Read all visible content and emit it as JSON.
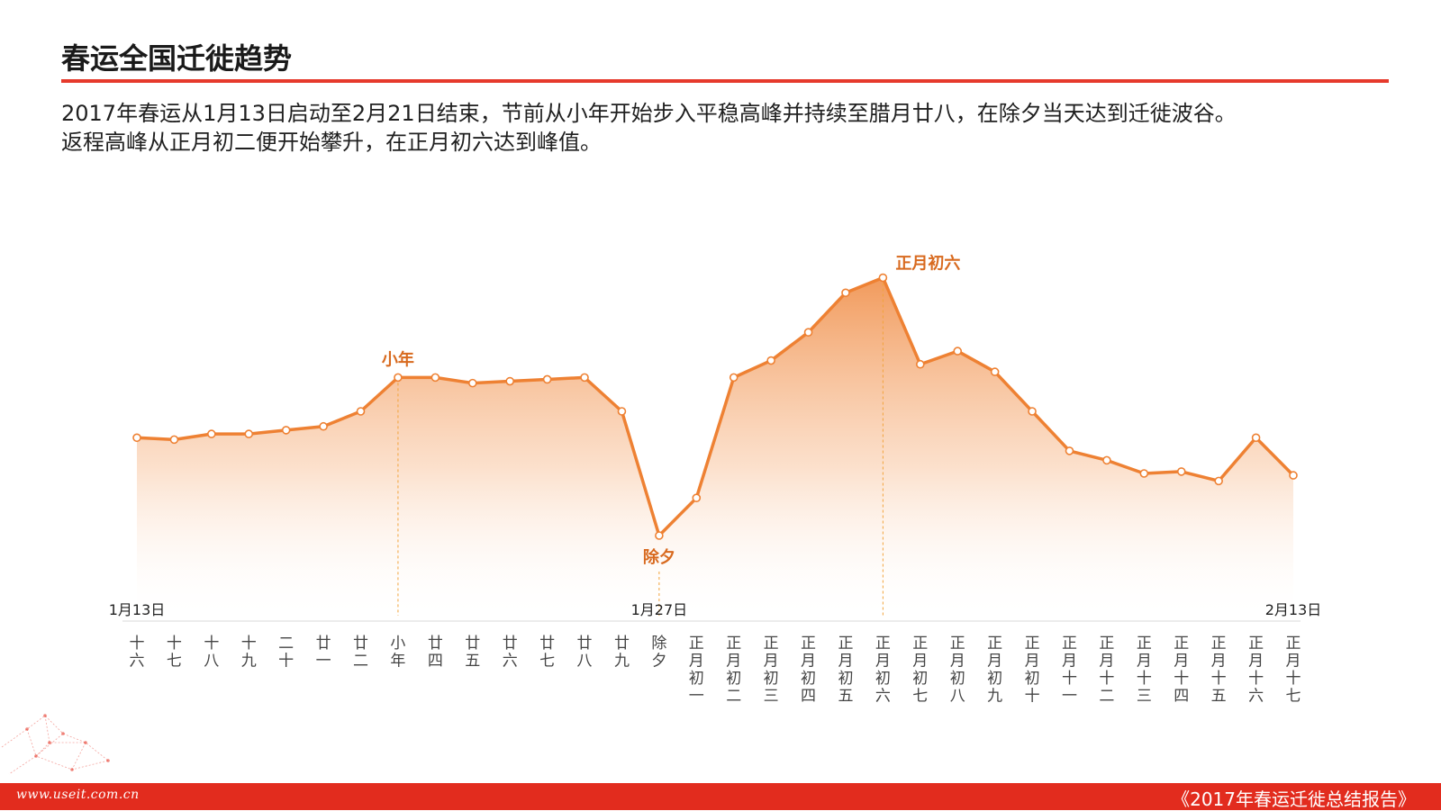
{
  "header": {
    "title": "春运全国迁徙趋势",
    "description_line1": "2017年春运从1月13日启动至2月21日结束，节前从小年开始步入平稳高峰并持续至腊月廿八，在除夕当天达到迁徙波谷。",
    "description_line2": "返程高峰从正月初二便开始攀升，在正月初六达到峰值。"
  },
  "footer": {
    "url": "www.useit.com.cn",
    "report_title": "《2017年春运迁徙总结报告》"
  },
  "colors": {
    "accent": "#e63a2c",
    "line": "#ee8133",
    "annotation": "#d86a1f",
    "footer": "#e22c1e"
  },
  "chart_data": {
    "type": "area",
    "categories": [
      "十六",
      "十七",
      "十八",
      "十九",
      "二十",
      "廿一",
      "廿二",
      "小年",
      "廿四",
      "廿五",
      "廿六",
      "廿七",
      "廿八",
      "廿九",
      "除夕",
      "正月初一",
      "正月初二",
      "正月初三",
      "正月初四",
      "正月初五",
      "正月初六",
      "正月初七",
      "正月初八",
      "正月初九",
      "正月初十",
      "正月十一",
      "正月十二",
      "正月十三",
      "正月十四",
      "正月十五",
      "正月十六",
      "正月十七"
    ],
    "values": [
      48,
      47.5,
      49,
      49,
      50,
      51,
      55,
      64,
      64,
      62.5,
      63,
      63.5,
      64,
      55,
      22,
      32,
      64,
      68.5,
      76,
      86.5,
      90.5,
      67.5,
      71,
      65.5,
      55,
      44.5,
      42,
      38.5,
      39,
      36.5,
      48,
      38
    ],
    "ylim": [
      0,
      110
    ],
    "date_labels": [
      {
        "index": 0,
        "text": "1月13日"
      },
      {
        "index": 14,
        "text": "1月27日"
      },
      {
        "index": 31,
        "text": "2月13日"
      }
    ],
    "annotations": [
      {
        "index": 7,
        "text": "小年",
        "position": "above"
      },
      {
        "index": 14,
        "text": "除夕",
        "position": "below"
      },
      {
        "index": 20,
        "text": "正月初六",
        "position": "above-right"
      }
    ],
    "grid": false,
    "legend": "none"
  }
}
